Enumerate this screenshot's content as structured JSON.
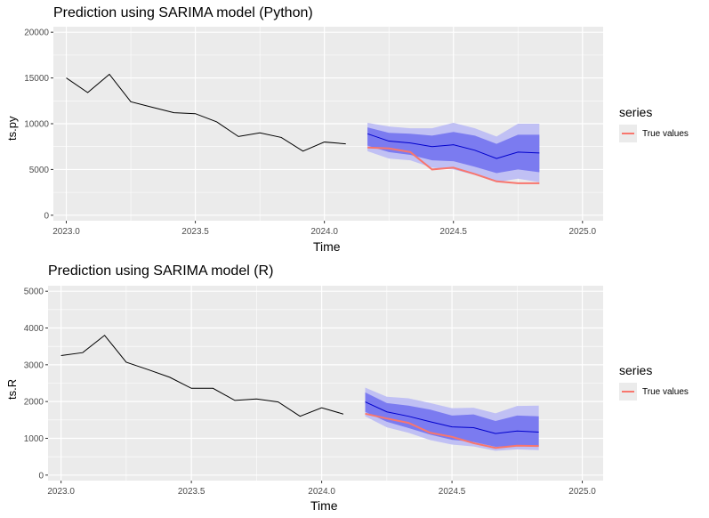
{
  "chart_data": [
    {
      "type": "line",
      "title": "Prediction using SARIMA model (Python)",
      "xlabel": "Time",
      "ylabel": "ts.py",
      "xlim": [
        2022.95,
        2025.08
      ],
      "ylim": [
        -600,
        20600
      ],
      "xticks": [
        2023.0,
        2023.5,
        2024.0,
        2024.5,
        2025.0
      ],
      "xtick_labels": [
        "2023.0",
        "2023.5",
        "2024.0",
        "2024.5",
        "2025.0"
      ],
      "yticks": [
        0,
        5000,
        10000,
        15000,
        20000
      ],
      "ytick_labels": [
        "0",
        "5000",
        "10000",
        "15000",
        "20000"
      ],
      "grid": true,
      "legend": {
        "title": "series",
        "entries": [
          "True values"
        ],
        "placement": "right"
      },
      "history": {
        "x": [
          2023.0,
          2023.083,
          2023.167,
          2023.25,
          2023.333,
          2023.417,
          2023.5,
          2023.583,
          2023.667,
          2023.75,
          2023.833,
          2023.917,
          2024.0,
          2024.083
        ],
        "y": [
          15000,
          13400,
          15400,
          12400,
          11800,
          11200,
          11100,
          10200,
          8600,
          9000,
          8500,
          7000,
          8000,
          7800
        ]
      },
      "forecast": {
        "x": [
          2024.167,
          2024.25,
          2024.333,
          2024.417,
          2024.5,
          2024.583,
          2024.667,
          2024.75,
          2024.833
        ],
        "mean": [
          8900,
          8100,
          7900,
          7500,
          7700,
          7100,
          6200,
          6900,
          6800
        ],
        "lo80": [
          7600,
          6900,
          6600,
          6000,
          5900,
          5300,
          4600,
          5000,
          4700
        ],
        "hi80": [
          9600,
          9000,
          8900,
          8700,
          9100,
          8700,
          7800,
          8800,
          8800
        ],
        "lo95": [
          7000,
          6200,
          6000,
          5200,
          5000,
          4400,
          3600,
          4000,
          3600
        ],
        "hi95": [
          10100,
          9700,
          9500,
          9500,
          10100,
          9500,
          8600,
          10000,
          10000
        ]
      },
      "true_values": {
        "name": "True values",
        "x": [
          2024.167,
          2024.25,
          2024.333,
          2024.417,
          2024.5,
          2024.583,
          2024.667,
          2024.75,
          2024.833
        ],
        "y": [
          7400,
          7300,
          6900,
          5000,
          5200,
          4500,
          3700,
          3500,
          3500
        ]
      },
      "colors": {
        "panel_bg": "#ebebeb",
        "history": "#000000",
        "mean": "#0000cc",
        "band80": "#7b7bf0",
        "band95": "#c0c0f4",
        "true_values": "#f8766d"
      }
    },
    {
      "type": "line",
      "title": "Prediction using SARIMA model (R)",
      "xlabel": "Time",
      "ylabel": "ts.R",
      "xlim": [
        2022.95,
        2025.08
      ],
      "ylim": [
        -150,
        5150
      ],
      "xticks": [
        2023.0,
        2023.5,
        2024.0,
        2024.5,
        2025.0
      ],
      "xtick_labels": [
        "2023.0",
        "2023.5",
        "2024.0",
        "2024.5",
        "2025.0"
      ],
      "yticks": [
        0,
        1000,
        2000,
        3000,
        4000,
        5000
      ],
      "ytick_labels": [
        "0",
        "1000",
        "2000",
        "3000",
        "4000",
        "5000"
      ],
      "grid": true,
      "legend": {
        "title": "series",
        "entries": [
          "True values"
        ],
        "placement": "right"
      },
      "history": {
        "x": [
          2023.0,
          2023.083,
          2023.167,
          2023.25,
          2023.333,
          2023.417,
          2023.5,
          2023.583,
          2023.667,
          2023.75,
          2023.833,
          2023.917,
          2024.0,
          2024.083
        ],
        "y": [
          3250,
          3330,
          3800,
          3070,
          2870,
          2660,
          2360,
          2360,
          2030,
          2070,
          1990,
          1600,
          1830,
          1660
        ]
      },
      "forecast": {
        "x": [
          2024.167,
          2024.25,
          2024.333,
          2024.417,
          2024.5,
          2024.583,
          2024.667,
          2024.75,
          2024.833
        ],
        "mean": [
          1990,
          1720,
          1600,
          1450,
          1310,
          1290,
          1130,
          1200,
          1170
        ],
        "lo80": [
          1720,
          1450,
          1280,
          1100,
          960,
          900,
          770,
          790,
          780
        ],
        "hi80": [
          2250,
          1960,
          1890,
          1780,
          1620,
          1650,
          1470,
          1620,
          1600
        ],
        "lo95": [
          1600,
          1300,
          1150,
          950,
          830,
          780,
          660,
          700,
          680
        ],
        "hi95": [
          2380,
          2130,
          2090,
          1960,
          1820,
          1830,
          1680,
          1880,
          1890
        ]
      },
      "true_values": {
        "name": "True values",
        "x": [
          2024.167,
          2024.25,
          2024.333,
          2024.417,
          2024.5,
          2024.583,
          2024.667,
          2024.75,
          2024.833
        ],
        "y": [
          1670,
          1540,
          1420,
          1150,
          1040,
          870,
          740,
          800,
          790
        ]
      },
      "colors": {
        "panel_bg": "#ebebeb",
        "history": "#000000",
        "mean": "#0000cc",
        "band80": "#7b7bf0",
        "band95": "#c0c0f4",
        "true_values": "#f8766d"
      }
    }
  ]
}
